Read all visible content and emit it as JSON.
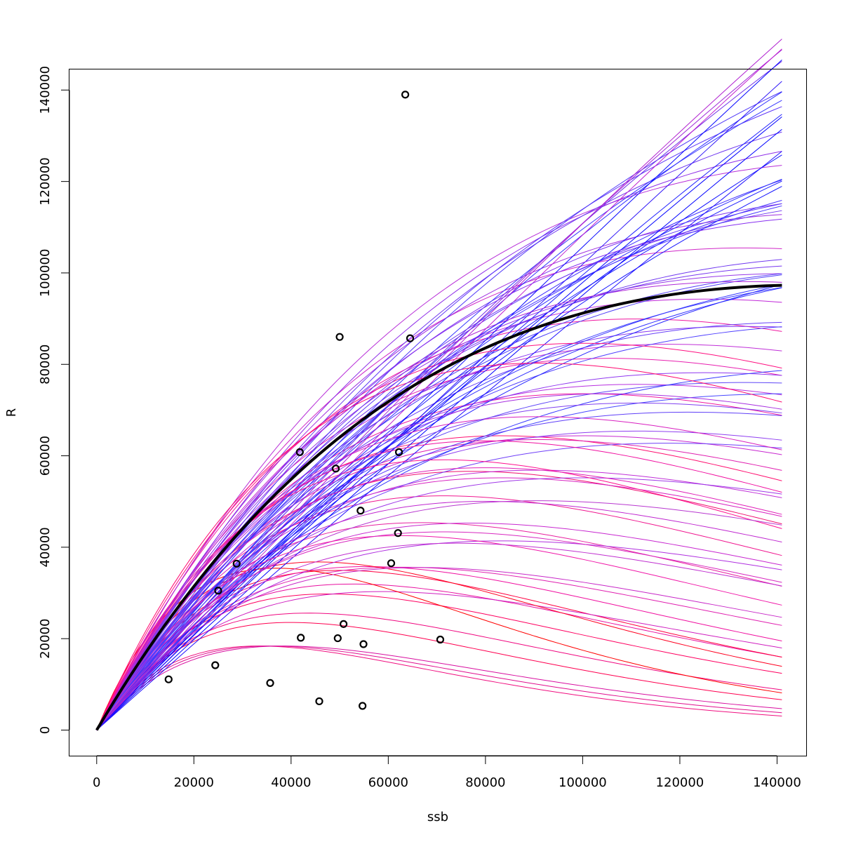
{
  "chart_data": {
    "type": "line",
    "title": "",
    "xlabel": "ssb",
    "ylabel": "R",
    "xlim": [
      -5600,
      146000
    ],
    "ylim": [
      -5600,
      144500
    ],
    "x_ticks": [
      0,
      20000,
      40000,
      60000,
      80000,
      100000,
      120000,
      140000
    ],
    "y_ticks": [
      0,
      20000,
      40000,
      60000,
      80000,
      100000,
      120000,
      140000
    ],
    "x_tick_labels": [
      "0",
      "20000",
      "40000",
      "60000",
      "80000",
      "100000",
      "120000",
      "140000"
    ],
    "y_tick_labels": [
      "0",
      "20000",
      "40000",
      "60000",
      "80000",
      "100000",
      "120000",
      "140000"
    ],
    "grid": false,
    "legend": "none",
    "curve_x_max": 141000,
    "colors": {
      "axis": "#000000",
      "points": "#000000",
      "fitted": "#000000",
      "low_ssb_color": "#ff0000",
      "mid_color": "#ff00ff",
      "high_color": "#0000ff"
    },
    "observed": [
      [
        63500,
        139000
      ],
      [
        50000,
        86000
      ],
      [
        64500,
        85700
      ],
      [
        41800,
        60800
      ],
      [
        62200,
        60800
      ],
      [
        49200,
        57200
      ],
      [
        54300,
        48000
      ],
      [
        62000,
        43100
      ],
      [
        28800,
        36400
      ],
      [
        60600,
        36500
      ],
      [
        25000,
        30500
      ],
      [
        50800,
        23200
      ],
      [
        42000,
        20200
      ],
      [
        49600,
        20100
      ],
      [
        54900,
        18800
      ],
      [
        70700,
        19800
      ],
      [
        24400,
        14200
      ],
      [
        14800,
        11100
      ],
      [
        35700,
        10300
      ],
      [
        45800,
        6300
      ],
      [
        54700,
        5300
      ]
    ],
    "fitted": {
      "name": "",
      "alpha": 1.8,
      "beta": 6.8e-06
    },
    "samples": [
      {
        "alpha": 1.5,
        "beta": 3e-05,
        "color": "#f01080"
      },
      {
        "alpha": 1.4,
        "beta": 2.8e-05,
        "color": "#e0108f"
      },
      {
        "alpha": 1.3,
        "beta": 2.6e-05,
        "color": "#d810a0"
      },
      {
        "alpha": 1.6,
        "beta": 2.5e-05,
        "color": "#ff0050"
      },
      {
        "alpha": 1.6,
        "beta": 2.3e-05,
        "color": "#f00880"
      },
      {
        "alpha": 1.7,
        "beta": 2.1e-05,
        "color": "#ff0060"
      },
      {
        "alpha": 1.65,
        "beta": 1.9e-05,
        "color": "#e810a0"
      },
      {
        "alpha": 1.9,
        "beta": 2e-05,
        "color": "#ff0040"
      },
      {
        "alpha": 1.75,
        "beta": 1.8e-05,
        "color": "#f010a0"
      },
      {
        "alpha": 1.4,
        "beta": 1.7e-05,
        "color": "#d020c0"
      },
      {
        "alpha": 1.55,
        "beta": 1.6e-05,
        "color": "#e020b0"
      },
      {
        "alpha": 2.2,
        "beta": 2.2e-05,
        "color": "#ff0020"
      },
      {
        "alpha": 2.6,
        "beta": 2.7e-05,
        "color": "#ff0000"
      },
      {
        "alpha": 1.85,
        "beta": 1.5e-05,
        "color": "#e820a0"
      },
      {
        "alpha": 1.95,
        "beta": 1.4e-05,
        "color": "#f01890"
      },
      {
        "alpha": 1.6,
        "beta": 1.3e-05,
        "color": "#c828d0"
      },
      {
        "alpha": 2.0,
        "beta": 1.3e-05,
        "color": "#f01070"
      },
      {
        "alpha": 1.8,
        "beta": 1.2e-05,
        "color": "#d820c0"
      },
      {
        "alpha": 1.35,
        "beta": 1.2e-05,
        "color": "#b030e0"
      },
      {
        "alpha": 2.1,
        "beta": 1.2e-05,
        "color": "#ff1070"
      },
      {
        "alpha": 1.7,
        "beta": 1.1e-05,
        "color": "#c030d8"
      },
      {
        "alpha": 1.9,
        "beta": 1.1e-05,
        "color": "#e020b0"
      },
      {
        "alpha": 1.5,
        "beta": 1e-05,
        "color": "#a038e8"
      },
      {
        "alpha": 1.75,
        "beta": 1e-05,
        "color": "#c828d0"
      },
      {
        "alpha": 2.0,
        "beta": 1e-05,
        "color": "#f018a0"
      },
      {
        "alpha": 1.6,
        "beta": 9e-06,
        "color": "#9040f0"
      },
      {
        "alpha": 1.85,
        "beta": 9e-06,
        "color": "#b830e0"
      },
      {
        "alpha": 2.1,
        "beta": 9.5e-06,
        "color": "#e820b0"
      },
      {
        "alpha": 1.45,
        "beta": 8.5e-06,
        "color": "#7040f8"
      },
      {
        "alpha": 1.7,
        "beta": 8e-06,
        "color": "#9038f0"
      },
      {
        "alpha": 1.95,
        "beta": 8.5e-06,
        "color": "#c030d8"
      },
      {
        "alpha": 2.2,
        "beta": 9e-06,
        "color": "#f018a0"
      },
      {
        "alpha": 1.55,
        "beta": 7.5e-06,
        "color": "#6048f8"
      },
      {
        "alpha": 1.8,
        "beta": 7.5e-06,
        "color": "#8838f0"
      },
      {
        "alpha": 2.05,
        "beta": 8e-06,
        "color": "#c028d8"
      },
      {
        "alpha": 1.4,
        "beta": 7e-06,
        "color": "#4848ff"
      },
      {
        "alpha": 1.65,
        "beta": 6.8e-06,
        "color": "#6840f8"
      },
      {
        "alpha": 1.9,
        "beta": 7e-06,
        "color": "#9838e8"
      },
      {
        "alpha": 2.15,
        "beta": 7.5e-06,
        "color": "#d028c8"
      },
      {
        "alpha": 1.5,
        "beta": 6.2e-06,
        "color": "#5040ff"
      },
      {
        "alpha": 1.75,
        "beta": 6.2e-06,
        "color": "#7038f0"
      },
      {
        "alpha": 2.0,
        "beta": 6.5e-06,
        "color": "#a030e0"
      },
      {
        "alpha": 1.3,
        "beta": 6e-06,
        "color": "#3838ff"
      },
      {
        "alpha": 1.6,
        "beta": 5.8e-06,
        "color": "#5040f8"
      },
      {
        "alpha": 1.85,
        "beta": 5.8e-06,
        "color": "#8038f0"
      },
      {
        "alpha": 2.1,
        "beta": 6.2e-06,
        "color": "#b830d8"
      },
      {
        "alpha": 1.45,
        "beta": 5.3e-06,
        "color": "#4040ff"
      },
      {
        "alpha": 1.7,
        "beta": 5.2e-06,
        "color": "#6038f8"
      },
      {
        "alpha": 1.95,
        "beta": 5.5e-06,
        "color": "#9030e8"
      },
      {
        "alpha": 1.35,
        "beta": 4.8e-06,
        "color": "#3030ff"
      },
      {
        "alpha": 1.55,
        "beta": 4.5e-06,
        "color": "#4838ff"
      },
      {
        "alpha": 1.8,
        "beta": 4.7e-06,
        "color": "#7038f0"
      },
      {
        "alpha": 1.25,
        "beta": 4.2e-06,
        "color": "#2828ff"
      },
      {
        "alpha": 1.5,
        "beta": 4e-06,
        "color": "#4030ff"
      },
      {
        "alpha": 1.7,
        "beta": 4e-06,
        "color": "#6038f8"
      },
      {
        "alpha": 1.4,
        "beta": 3.5e-06,
        "color": "#3030ff"
      },
      {
        "alpha": 1.6,
        "beta": 3.4e-06,
        "color": "#5038f8"
      },
      {
        "alpha": 1.3,
        "beta": 3e-06,
        "color": "#2020ff"
      },
      {
        "alpha": 1.45,
        "beta": 2.8e-06,
        "color": "#3838ff"
      },
      {
        "alpha": 1.2,
        "beta": 2.5e-06,
        "color": "#1818ff"
      },
      {
        "alpha": 1.35,
        "beta": 2.2e-06,
        "color": "#3030ff"
      },
      {
        "alpha": 1.15,
        "beta": 1.8e-06,
        "color": "#1010ff"
      },
      {
        "alpha": 1.3,
        "beta": 1.6e-06,
        "color": "#7030e8"
      },
      {
        "alpha": 1.25,
        "beta": 1.2e-06,
        "color": "#a028d8"
      },
      {
        "alpha": 1.1,
        "beta": 1e-06,
        "color": "#2020ff"
      },
      {
        "alpha": 1.05,
        "beta": 7e-07,
        "color": "#0000ff"
      },
      {
        "alpha": 1.2,
        "beta": 8e-07,
        "color": "#b020d0"
      },
      {
        "alpha": 1.0,
        "beta": 5e-07,
        "color": "#0000ff"
      },
      {
        "alpha": 0.95,
        "beta": 4e-07,
        "color": "#2010ff"
      },
      {
        "alpha": 1.15,
        "beta": 6e-07,
        "color": "#c020d0"
      },
      {
        "alpha": 1.1,
        "beta": 4e-07,
        "color": "#0808ff"
      },
      {
        "alpha": 1.05,
        "beta": 3e-07,
        "color": "#3018f8"
      },
      {
        "alpha": 2.3,
        "beta": 1e-05,
        "color": "#ff1080"
      },
      {
        "alpha": 2.4,
        "beta": 1.1e-05,
        "color": "#ff0870"
      },
      {
        "alpha": 2.25,
        "beta": 1.4e-05,
        "color": "#ff1090"
      },
      {
        "alpha": 1.85,
        "beta": 1.6e-05,
        "color": "#f018a8"
      },
      {
        "alpha": 1.65,
        "beta": 1.4e-05,
        "color": "#d828c0"
      },
      {
        "alpha": 1.5,
        "beta": 1.1e-05,
        "color": "#b838d0"
      },
      {
        "alpha": 1.9,
        "beta": 9.5e-06,
        "color": "#a830e0"
      },
      {
        "alpha": 2.05,
        "beta": 1.1e-05,
        "color": "#d820c0"
      },
      {
        "alpha": 1.75,
        "beta": 9e-06,
        "color": "#8040f0"
      },
      {
        "alpha": 1.55,
        "beta": 8.2e-06,
        "color": "#6040f8"
      },
      {
        "alpha": 2.0,
        "beta": 7.5e-06,
        "color": "#b028d8"
      },
      {
        "alpha": 1.65,
        "beta": 6e-06,
        "color": "#5840f8"
      },
      {
        "alpha": 1.9,
        "beta": 6.2e-06,
        "color": "#8830f0"
      },
      {
        "alpha": 1.4,
        "beta": 5e-06,
        "color": "#3838ff"
      },
      {
        "alpha": 1.75,
        "beta": 5.5e-06,
        "color": "#7038f0"
      },
      {
        "alpha": 1.6,
        "beta": 4.8e-06,
        "color": "#4838ff"
      },
      {
        "alpha": 1.8,
        "beta": 6.5e-06,
        "color": "#7838f0"
      },
      {
        "alpha": 2.15,
        "beta": 1.25e-05,
        "color": "#f010a0"
      },
      {
        "alpha": 1.95,
        "beta": 1.25e-05,
        "color": "#e020b8"
      },
      {
        "alpha": 1.7,
        "beta": 1.25e-05,
        "color": "#c028d0"
      },
      {
        "alpha": 1.5,
        "beta": 1.35e-05,
        "color": "#c030d0"
      },
      {
        "alpha": 1.45,
        "beta": 1.5e-05,
        "color": "#c828c8"
      }
    ]
  }
}
